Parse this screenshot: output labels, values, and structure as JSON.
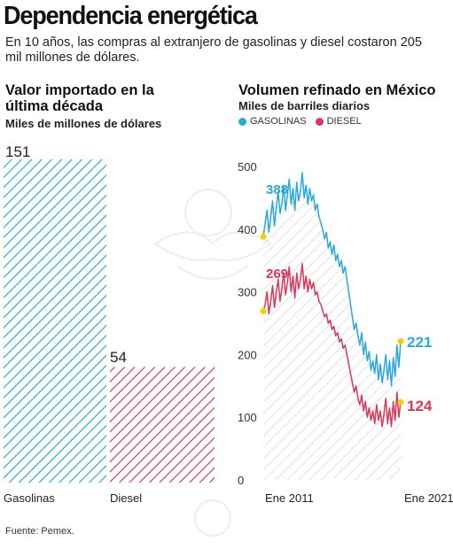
{
  "header": {
    "title": "Dependencia energética",
    "subtitle": "En 10 años, las compras al extranjero de gasolinas y diesel costaron 205 mil millones de dólares."
  },
  "left_panel": {
    "heading": "Valor importado en la última década",
    "unit": "Miles de millones de dólares"
  },
  "right_panel": {
    "heading": "Volumen refinado en México",
    "unit": "Miles de barriles diarios"
  },
  "colors": {
    "gasolinas": "#29a8e0",
    "diesel": "#d8385a",
    "marker": "#f5d000",
    "hatch_gray": "#c8c8c8"
  },
  "source": "Fuente: Pemex.",
  "chart_data": [
    {
      "type": "bar",
      "title": "Valor importado en la última década",
      "ylabel": "Miles de millones de dólares",
      "categories": [
        "Gasolinas",
        "Diesel"
      ],
      "values": [
        151,
        54
      ],
      "ylim": [
        0,
        160
      ]
    },
    {
      "type": "line",
      "title": "Volumen refinado en México",
      "ylabel": "Miles de barriles diarios",
      "x_ticks": [
        "Ene 2011",
        "Ene 2021"
      ],
      "y_ticks": [
        0,
        100,
        200,
        300,
        400,
        500
      ],
      "ylim": [
        0,
        500
      ],
      "start_labels": {
        "gasolinas": "388",
        "diesel": "269"
      },
      "end_labels": {
        "gasolinas": "221",
        "diesel": "124"
      },
      "series": [
        {
          "name": "GASOLINAS",
          "values": [
            388,
            410,
            430,
            395,
            420,
            445,
            405,
            435,
            460,
            425,
            440,
            470,
            430,
            455,
            480,
            440,
            465,
            430,
            475,
            445,
            460,
            490,
            450,
            470,
            440,
            465,
            445,
            455,
            430,
            440,
            420,
            410,
            400,
            385,
            395,
            370,
            380,
            360,
            375,
            350,
            360,
            340,
            350,
            330,
            340,
            320,
            300,
            280,
            260,
            240,
            250,
            230,
            215,
            235,
            200,
            220,
            190,
            205,
            175,
            190,
            170,
            200,
            160,
            185,
            155,
            175,
            200,
            160,
            190,
            150,
            195,
            165,
            215,
            180,
            221
          ]
        },
        {
          "name": "DIESEL",
          "values": [
            269,
            280,
            300,
            265,
            285,
            310,
            275,
            300,
            320,
            285,
            305,
            330,
            295,
            315,
            340,
            300,
            325,
            290,
            330,
            305,
            320,
            345,
            305,
            325,
            300,
            320,
            305,
            315,
            295,
            300,
            285,
            280,
            270,
            260,
            265,
            250,
            255,
            240,
            245,
            230,
            235,
            220,
            225,
            210,
            215,
            200,
            185,
            170,
            155,
            140,
            150,
            130,
            120,
            135,
            110,
            125,
            100,
            115,
            95,
            110,
            90,
            120,
            95,
            110,
            85,
            105,
            130,
            90,
            115,
            85,
            125,
            95,
            140,
            100,
            124
          ]
        }
      ]
    }
  ]
}
